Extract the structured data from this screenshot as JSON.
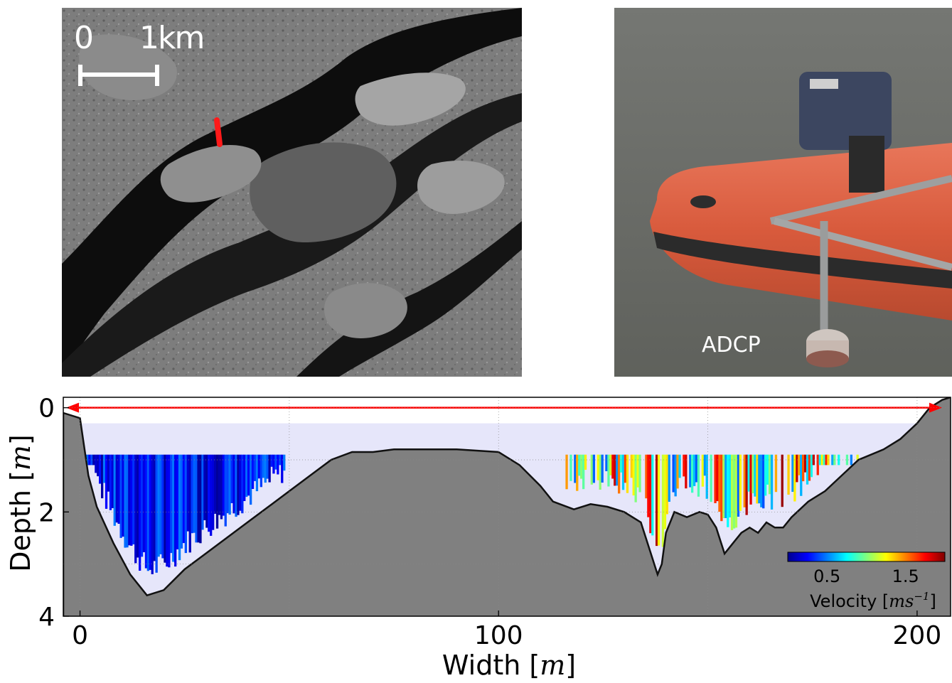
{
  "satellite": {
    "scale_start": "0",
    "scale_end": "1",
    "scale_unit": "km"
  },
  "photo": {
    "label": "ADCP"
  },
  "chart_data": {
    "type": "heatmap",
    "xlabel": "Width",
    "xlabel_unit": "m",
    "ylabel": "Depth",
    "ylabel_unit": "m",
    "xlim": [
      -4,
      208
    ],
    "ylim": [
      4,
      -0.2
    ],
    "x_ticks": [
      0,
      100,
      200
    ],
    "y_ticks": [
      0,
      2,
      4
    ],
    "colorbar": {
      "label": "Velocity",
      "unit": "ms",
      "unit_exponent": "−1",
      "ticks": [
        0.5,
        1.5
      ],
      "range": [
        0,
        2
      ],
      "placement": "bottom-right"
    },
    "water_surface_depth": 0.3,
    "bed_profile": {
      "x": [
        -4,
        0,
        2,
        4,
        8,
        12,
        16,
        20,
        25,
        30,
        35,
        40,
        45,
        50,
        55,
        60,
        65,
        70,
        75,
        80,
        90,
        100,
        105,
        110,
        113,
        118,
        122,
        126,
        130,
        134,
        136,
        138,
        139,
        140,
        142,
        145,
        148,
        150,
        152,
        154,
        156,
        158,
        160,
        162,
        164,
        166,
        168,
        170,
        174,
        178,
        182,
        186,
        192,
        196,
        200,
        203,
        206,
        208
      ],
      "y": [
        0.1,
        0.2,
        1.3,
        1.9,
        2.6,
        3.2,
        3.6,
        3.5,
        3.1,
        2.8,
        2.5,
        2.2,
        1.9,
        1.6,
        1.3,
        1.0,
        0.85,
        0.85,
        0.8,
        0.8,
        0.8,
        0.85,
        1.1,
        1.5,
        1.8,
        1.95,
        1.85,
        1.9,
        2.0,
        2.2,
        2.7,
        3.2,
        3.0,
        2.4,
        2.0,
        2.1,
        2.0,
        2.05,
        2.3,
        2.8,
        2.6,
        2.4,
        2.3,
        2.4,
        2.2,
        2.3,
        2.3,
        2.1,
        1.8,
        1.6,
        1.3,
        1.0,
        0.8,
        0.6,
        0.3,
        0.0,
        -0.15,
        -0.2
      ]
    },
    "width_arrow": {
      "x_from": -4,
      "x_to": 208,
      "depth": 0.0
    },
    "velocity_region_1": {
      "x_range": [
        0,
        49
      ],
      "top_depth": 0.9,
      "velocity_range": [
        0.05,
        0.5
      ]
    },
    "velocity_region_2": {
      "x_range": [
        116,
        186
      ],
      "top_depth": 0.9,
      "velocity_range": [
        0.4,
        1.95
      ]
    }
  }
}
